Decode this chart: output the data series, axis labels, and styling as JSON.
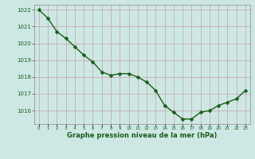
{
  "hours": [
    0,
    1,
    2,
    3,
    4,
    5,
    6,
    7,
    8,
    9,
    10,
    11,
    12,
    13,
    14,
    15,
    16,
    17,
    18,
    19,
    20,
    21,
    22,
    23
  ],
  "pressure": [
    1022.0,
    1021.5,
    1020.7,
    1020.3,
    1019.8,
    1019.3,
    1018.9,
    1018.3,
    1018.1,
    1018.2,
    1018.2,
    1018.0,
    1017.7,
    1017.2,
    1016.3,
    1015.9,
    1015.5,
    1015.5,
    1015.9,
    1016.0,
    1016.3,
    1016.5,
    1016.7,
    1017.2
  ],
  "line_color": "#1a5c1a",
  "marker_color": "#1a5c1a",
  "bg_color": "#cde8e4",
  "grid_color": "#c8a0a0",
  "xlabel": "Graphe pression niveau de la mer (hPa)",
  "xlabel_color": "#1a5c1a",
  "tick_color": "#1a5c1a",
  "ylim": [
    1015.2,
    1022.3
  ],
  "yticks": [
    1016,
    1017,
    1018,
    1019,
    1020,
    1021,
    1022
  ],
  "xticks": [
    0,
    1,
    2,
    3,
    4,
    5,
    6,
    7,
    8,
    9,
    10,
    11,
    12,
    13,
    14,
    15,
    16,
    17,
    18,
    19,
    20,
    21,
    22,
    23
  ],
  "marker_size": 2.5,
  "line_width": 1.0
}
